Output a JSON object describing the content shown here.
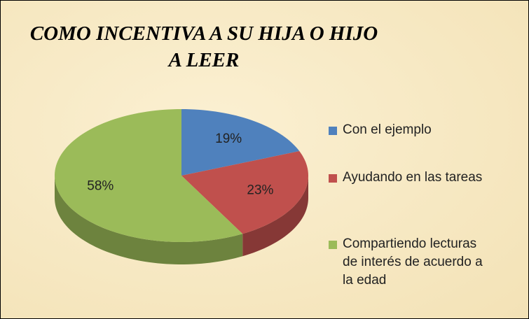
{
  "chart_data": {
    "type": "pie",
    "title": "COMO INCENTIVA  A SU HIJA O HIJO A LEER",
    "categories": [
      "Con el ejemplo",
      "Ayudando en las tareas",
      "Compartiendo lecturas de interés de acuerdo a la edad"
    ],
    "values": [
      19,
      23,
      58
    ],
    "value_labels": [
      "19%",
      "23%",
      "58%"
    ],
    "colors": [
      "#4f81bd",
      "#c0504d",
      "#9bbb59"
    ],
    "legend": "right"
  }
}
